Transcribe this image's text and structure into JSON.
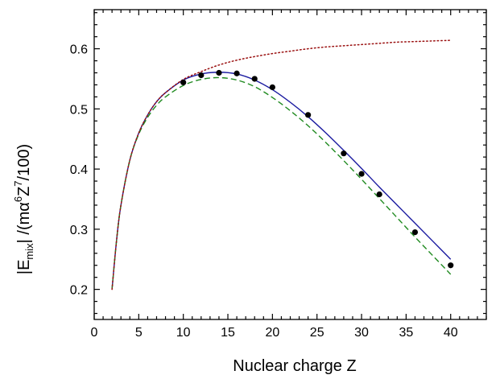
{
  "chart_data": {
    "type": "line",
    "xlabel": "Nuclear charge Z",
    "ylabel": {
      "part1": "|E",
      "part1_sub": "mix",
      "part2": "| /(mα",
      "part2_sup": "6",
      "part3": "Z",
      "part3_sup": "7",
      "part4": "/100)"
    },
    "xlim": [
      0,
      44
    ],
    "ylim": [
      0.15,
      0.665
    ],
    "x_ticks": [
      0,
      5,
      10,
      15,
      20,
      25,
      30,
      35,
      40
    ],
    "y_ticks": [
      0.2,
      0.3,
      0.4,
      0.5,
      0.6
    ],
    "x_tick_labels": [
      "0",
      "5",
      "10",
      "15",
      "20",
      "25",
      "30",
      "35",
      "40"
    ],
    "y_tick_labels": [
      "0.2",
      "0.3",
      "0.4",
      "0.5",
      "0.6"
    ],
    "grid": false,
    "series": [
      {
        "style": "solid",
        "color": "#1a1aa0",
        "x": [
          2,
          2.5,
          3,
          4,
          5,
          6,
          7,
          8,
          10,
          12,
          14,
          16,
          18,
          20,
          22,
          24,
          26,
          28,
          30,
          32,
          34,
          36,
          38,
          40
        ],
        "y": [
          0.2,
          0.28,
          0.34,
          0.415,
          0.46,
          0.49,
          0.512,
          0.527,
          0.548,
          0.558,
          0.561,
          0.558,
          0.548,
          0.532,
          0.511,
          0.487,
          0.46,
          0.431,
          0.401,
          0.37,
          0.34,
          0.31,
          0.28,
          0.25
        ]
      },
      {
        "style": "dashed",
        "color": "#1f8a1f",
        "x": [
          2,
          2.5,
          3,
          4,
          5,
          6,
          7,
          8,
          10,
          12,
          14,
          16,
          18,
          20,
          22,
          24,
          26,
          28,
          30,
          32,
          34,
          36,
          38,
          40
        ],
        "y": [
          0.2,
          0.28,
          0.34,
          0.415,
          0.458,
          0.486,
          0.506,
          0.52,
          0.539,
          0.549,
          0.552,
          0.548,
          0.537,
          0.519,
          0.497,
          0.472,
          0.444,
          0.414,
          0.383,
          0.351,
          0.319,
          0.287,
          0.256,
          0.225
        ]
      },
      {
        "style": "dotted",
        "color": "#9a1010",
        "x": [
          2,
          2.5,
          3,
          4,
          5,
          6,
          7,
          8,
          10,
          12,
          14,
          16,
          18,
          20,
          22,
          24,
          26,
          28,
          30,
          32,
          34,
          36,
          38,
          40
        ],
        "y": [
          0.2,
          0.28,
          0.34,
          0.415,
          0.46,
          0.49,
          0.512,
          0.527,
          0.549,
          0.562,
          0.573,
          0.581,
          0.587,
          0.592,
          0.596,
          0.6,
          0.603,
          0.605,
          0.607,
          0.609,
          0.611,
          0.612,
          0.613,
          0.614
        ]
      },
      {
        "style": "points",
        "color": "#000000",
        "x": [
          10,
          12,
          14,
          16,
          18,
          20,
          24,
          28,
          30,
          32,
          36,
          40
        ],
        "y": [
          0.544,
          0.556,
          0.56,
          0.559,
          0.55,
          0.536,
          0.49,
          0.426,
          0.392,
          0.358,
          0.295,
          0.24
        ]
      }
    ]
  }
}
